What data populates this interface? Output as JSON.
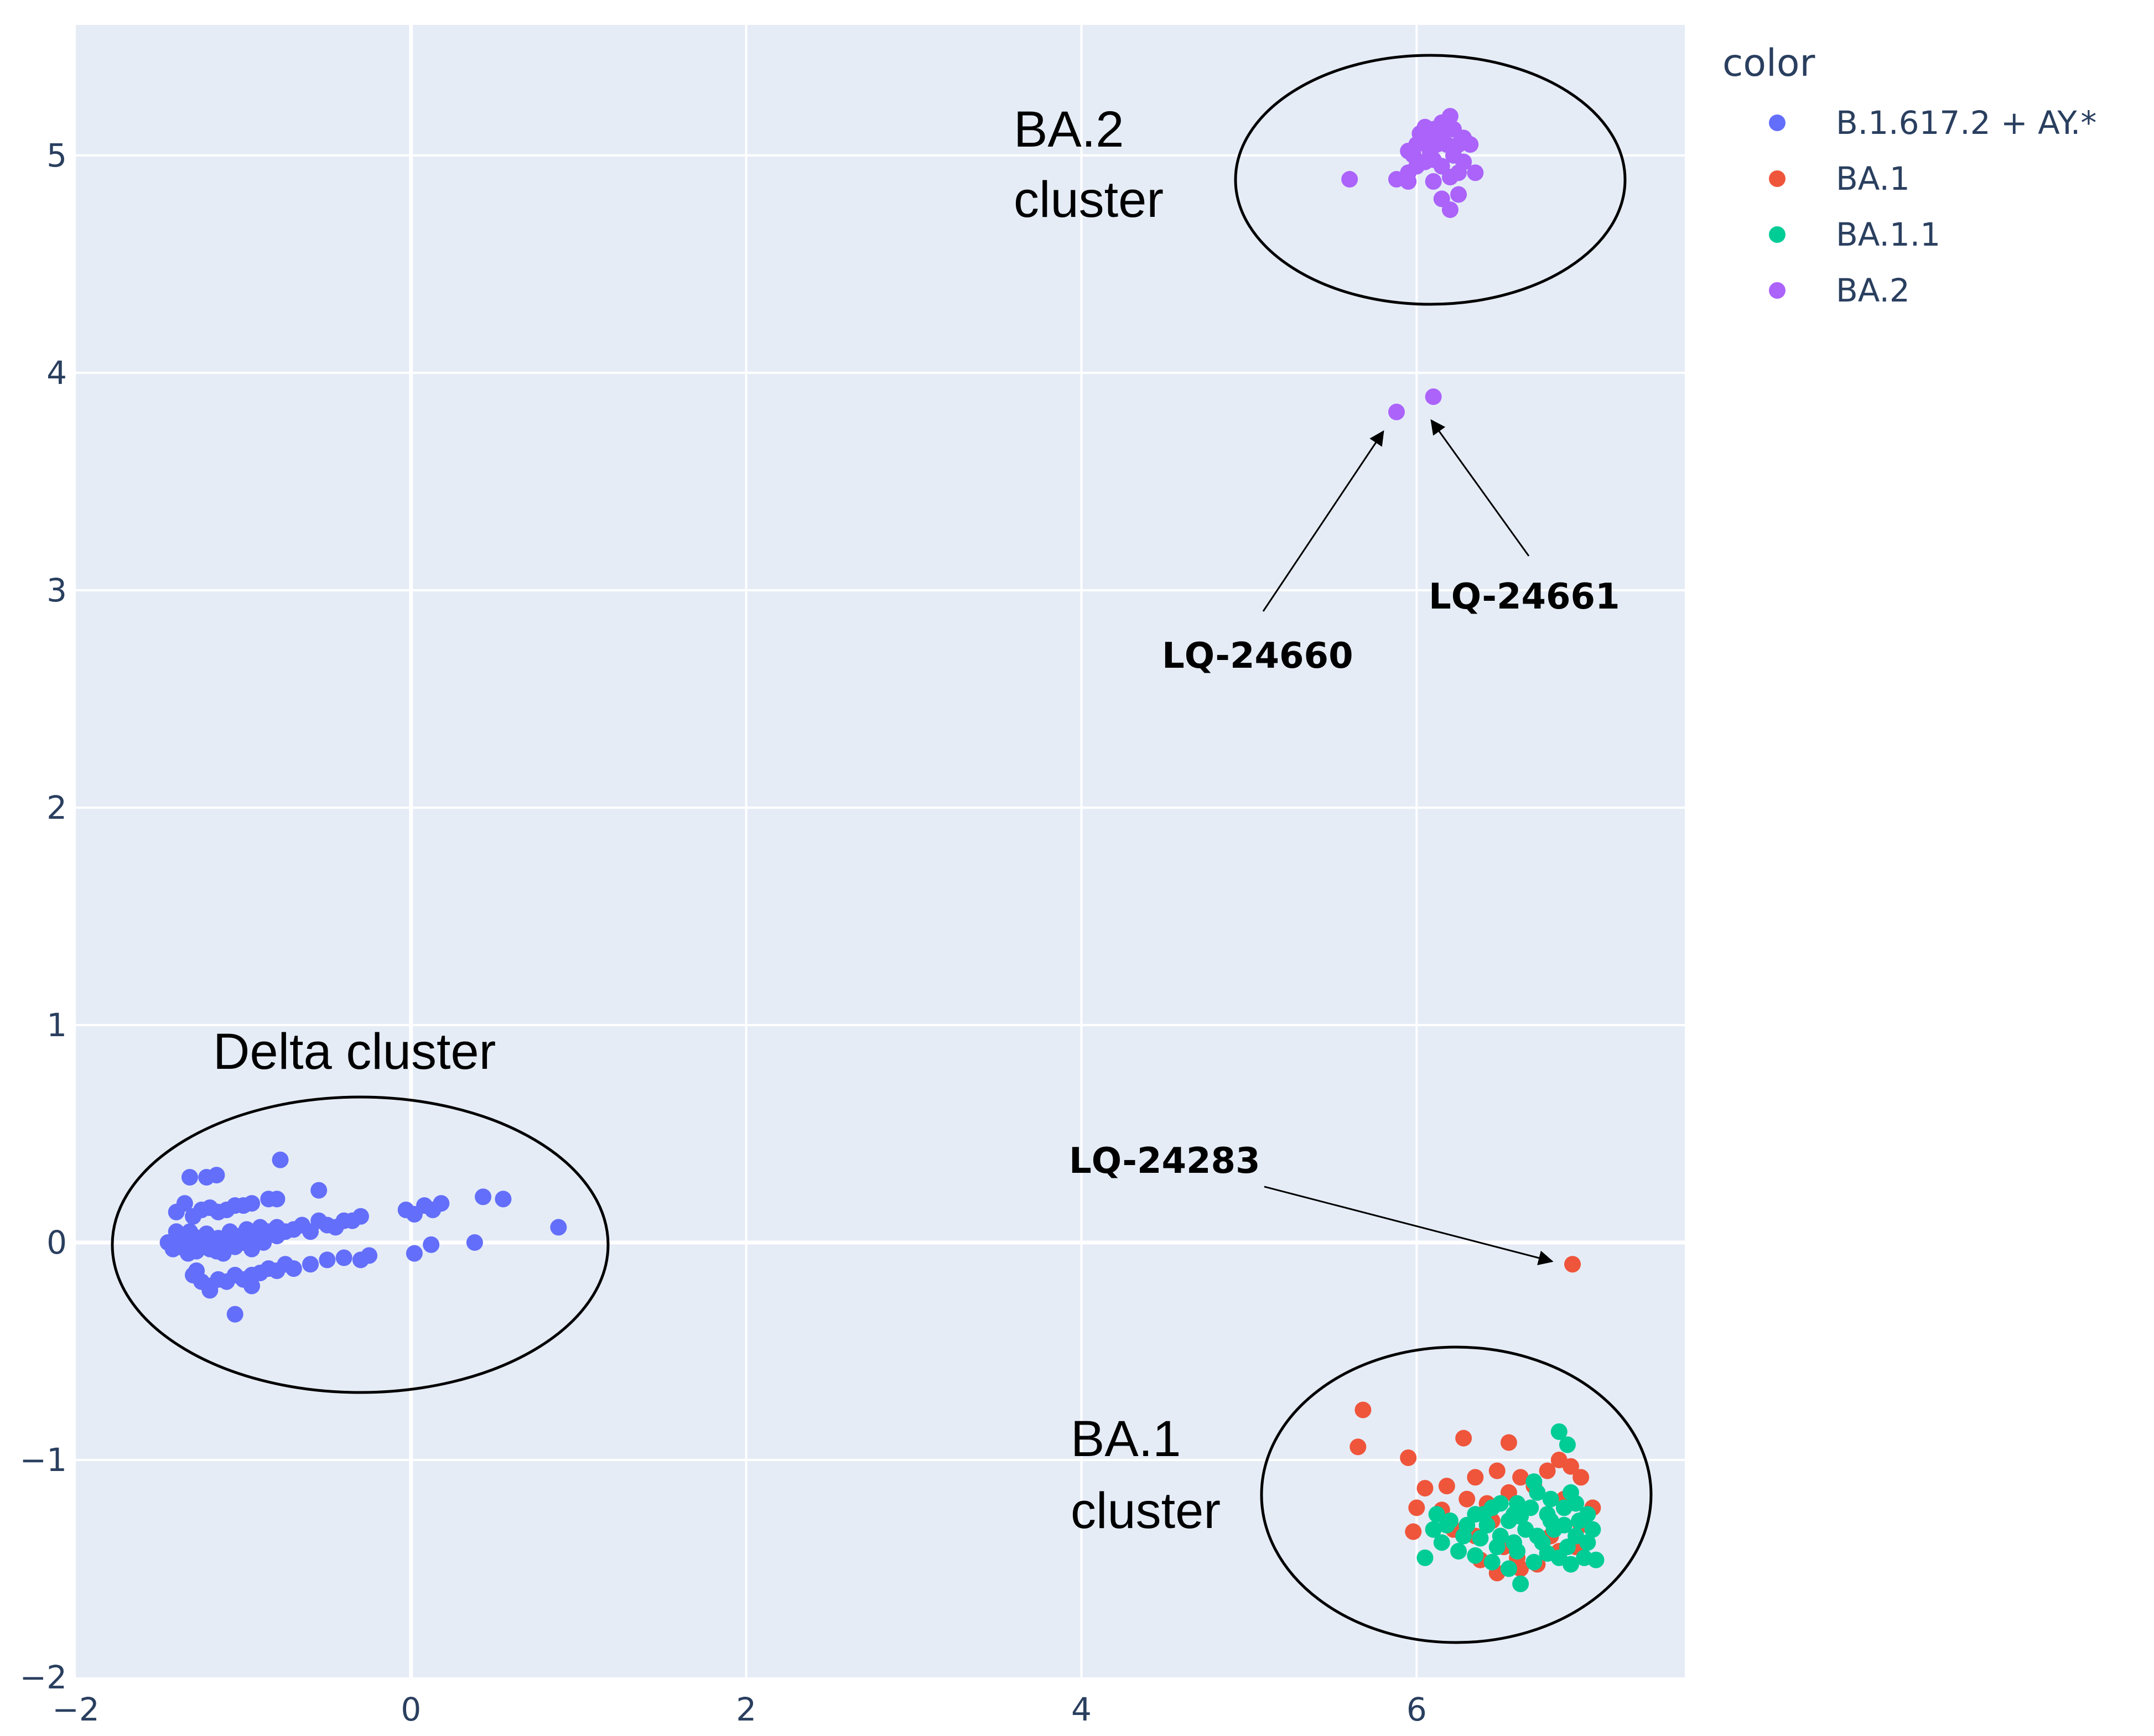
{
  "chart_data": {
    "type": "scatter",
    "xlim": [
      -2,
      7.6
    ],
    "ylim": [
      -2,
      5.6
    ],
    "xticks": [
      -2,
      0,
      2,
      4,
      6
    ],
    "yticks": [
      -2,
      -1,
      0,
      1,
      2,
      3,
      4,
      5
    ],
    "xtick_labels": [
      "−2",
      "0",
      "2",
      "4",
      "6"
    ],
    "ytick_labels": [
      "−2",
      "−1",
      "0",
      "1",
      "2",
      "3",
      "4",
      "5"
    ],
    "grid": true,
    "legend_position": "right",
    "legend_title": "color",
    "colors": {
      "background": "#e5ecf6",
      "grid": "#ffffff"
    },
    "series": [
      {
        "name": "B.1.617.2 + AY.*",
        "color": "#636efa",
        "points": [
          [
            -1.45,
            0.0
          ],
          [
            -1.4,
            0.05
          ],
          [
            -1.38,
            -0.02
          ],
          [
            -1.35,
            0.0
          ],
          [
            -1.33,
            -0.05
          ],
          [
            -1.3,
            0.03
          ],
          [
            -1.28,
            -0.04
          ],
          [
            -1.25,
            0.0
          ],
          [
            -1.22,
            0.04
          ],
          [
            -1.2,
            -0.03
          ],
          [
            -1.18,
            0.0
          ],
          [
            -1.15,
            0.02
          ],
          [
            -1.12,
            -0.05
          ],
          [
            -1.1,
            0.0
          ],
          [
            -1.08,
            0.05
          ],
          [
            -1.05,
            -0.02
          ],
          [
            -1.02,
            0.03
          ],
          [
            -1.0,
            0.0
          ],
          [
            -0.98,
            0.06
          ],
          [
            -0.95,
            -0.03
          ],
          [
            -0.92,
            0.02
          ],
          [
            -0.9,
            0.07
          ],
          [
            -0.88,
            0.0
          ],
          [
            -0.85,
            0.05
          ],
          [
            -0.82,
            0.04
          ],
          [
            -0.8,
            0.07
          ],
          [
            -0.75,
            0.05
          ],
          [
            -0.7,
            0.06
          ],
          [
            -0.65,
            0.08
          ],
          [
            -0.6,
            0.05
          ],
          [
            -0.55,
            0.1
          ],
          [
            -0.5,
            0.08
          ],
          [
            -0.45,
            0.07
          ],
          [
            -0.4,
            0.1
          ],
          [
            -0.35,
            0.1
          ],
          [
            -0.3,
            0.12
          ],
          [
            -1.42,
            -0.03
          ],
          [
            -1.4,
            0.02
          ],
          [
            -1.36,
            0.03
          ],
          [
            -1.32,
            0.05
          ],
          [
            -1.27,
            0.02
          ],
          [
            -1.24,
            -0.02
          ],
          [
            -1.16,
            -0.04
          ],
          [
            -1.06,
            0.03
          ],
          [
            -1.4,
            0.14
          ],
          [
            -1.35,
            0.18
          ],
          [
            -1.3,
            0.12
          ],
          [
            -1.25,
            0.15
          ],
          [
            -1.2,
            0.16
          ],
          [
            -1.15,
            0.14
          ],
          [
            -1.1,
            0.15
          ],
          [
            -1.05,
            0.17
          ],
          [
            -1.0,
            0.17
          ],
          [
            -0.95,
            0.18
          ],
          [
            -0.85,
            0.2
          ],
          [
            -0.8,
            0.2
          ],
          [
            -1.32,
            0.3
          ],
          [
            -1.22,
            0.3
          ],
          [
            -1.16,
            0.31
          ],
          [
            -0.78,
            0.38
          ],
          [
            -0.55,
            0.24
          ],
          [
            -0.8,
            0.03
          ],
          [
            -1.3,
            -0.15
          ],
          [
            -1.25,
            -0.18
          ],
          [
            -1.2,
            -0.2
          ],
          [
            -1.15,
            -0.17
          ],
          [
            -1.1,
            -0.18
          ],
          [
            -1.05,
            -0.15
          ],
          [
            -1.0,
            -0.17
          ],
          [
            -0.95,
            -0.15
          ],
          [
            -0.9,
            -0.14
          ],
          [
            -0.85,
            -0.12
          ],
          [
            -0.8,
            -0.13
          ],
          [
            -0.75,
            -0.1
          ],
          [
            -0.6,
            -0.1
          ],
          [
            -0.5,
            -0.08
          ],
          [
            -0.4,
            -0.07
          ],
          [
            -0.3,
            -0.08
          ],
          [
            -0.25,
            -0.06
          ],
          [
            -1.05,
            -0.33
          ],
          [
            -1.2,
            -0.22
          ],
          [
            -0.7,
            -0.12
          ],
          [
            -1.28,
            -0.13
          ],
          [
            -0.95,
            -0.2
          ],
          [
            -0.03,
            0.15
          ],
          [
            0.02,
            0.13
          ],
          [
            0.08,
            0.17
          ],
          [
            0.13,
            0.15
          ],
          [
            0.18,
            0.18
          ],
          [
            0.43,
            0.21
          ],
          [
            0.55,
            0.2
          ],
          [
            0.88,
            0.07
          ],
          [
            0.38,
            0.0
          ],
          [
            0.12,
            -0.01
          ],
          [
            0.02,
            -0.05
          ]
        ]
      },
      {
        "name": "BA.1",
        "color": "#ef553b",
        "points": [
          [
            6.93,
            -0.1
          ],
          [
            5.68,
            -0.77
          ],
          [
            5.65,
            -0.94
          ],
          [
            5.95,
            -0.99
          ],
          [
            6.05,
            -1.13
          ],
          [
            6.18,
            -1.12
          ],
          [
            6.0,
            -1.22
          ],
          [
            6.15,
            -1.23
          ],
          [
            6.3,
            -1.18
          ],
          [
            6.42,
            -1.2
          ],
          [
            6.55,
            -1.15
          ],
          [
            6.7,
            -1.12
          ],
          [
            6.28,
            -0.9
          ],
          [
            6.55,
            -0.92
          ],
          [
            6.35,
            -1.08
          ],
          [
            6.48,
            -1.05
          ],
          [
            6.62,
            -1.08
          ],
          [
            6.78,
            -1.05
          ],
          [
            6.85,
            -1.0
          ],
          [
            6.92,
            -1.03
          ],
          [
            6.98,
            -1.08
          ],
          [
            6.88,
            -1.18
          ],
          [
            7.05,
            -1.22
          ],
          [
            6.98,
            -1.3
          ],
          [
            5.98,
            -1.33
          ],
          [
            6.22,
            -1.32
          ],
          [
            6.35,
            -1.35
          ],
          [
            6.45,
            -1.28
          ],
          [
            6.52,
            -1.4
          ],
          [
            6.6,
            -1.45
          ],
          [
            6.72,
            -1.48
          ],
          [
            6.85,
            -1.42
          ],
          [
            6.95,
            -1.4
          ],
          [
            6.48,
            -1.52
          ],
          [
            6.62,
            -1.5
          ],
          [
            6.38,
            -1.46
          ],
          [
            6.8,
            -1.35
          ]
        ]
      },
      {
        "name": "BA.1.1",
        "color": "#00cc96",
        "points": [
          [
            6.85,
            -0.87
          ],
          [
            6.9,
            -0.93
          ],
          [
            6.7,
            -1.1
          ],
          [
            6.8,
            -1.18
          ],
          [
            6.6,
            -1.2
          ],
          [
            6.5,
            -1.2
          ],
          [
            6.4,
            -1.25
          ],
          [
            6.3,
            -1.3
          ],
          [
            6.2,
            -1.28
          ],
          [
            6.1,
            -1.32
          ],
          [
            6.05,
            -1.45
          ],
          [
            6.15,
            -1.38
          ],
          [
            6.25,
            -1.42
          ],
          [
            6.35,
            -1.44
          ],
          [
            6.45,
            -1.47
          ],
          [
            6.55,
            -1.5
          ],
          [
            6.62,
            -1.57
          ],
          [
            6.7,
            -1.47
          ],
          [
            6.78,
            -1.43
          ],
          [
            6.85,
            -1.45
          ],
          [
            6.92,
            -1.48
          ],
          [
            7.0,
            -1.45
          ],
          [
            7.07,
            -1.46
          ],
          [
            7.02,
            -1.38
          ],
          [
            6.95,
            -1.35
          ],
          [
            6.88,
            -1.3
          ],
          [
            6.8,
            -1.28
          ],
          [
            6.72,
            -1.35
          ],
          [
            6.65,
            -1.32
          ],
          [
            6.58,
            -1.38
          ],
          [
            6.5,
            -1.35
          ],
          [
            6.42,
            -1.3
          ],
          [
            6.35,
            -1.25
          ],
          [
            6.55,
            -1.28
          ],
          [
            6.68,
            -1.22
          ],
          [
            6.78,
            -1.25
          ],
          [
            6.88,
            -1.22
          ],
          [
            6.95,
            -1.2
          ],
          [
            7.02,
            -1.25
          ],
          [
            7.05,
            -1.32
          ],
          [
            6.9,
            -1.4
          ],
          [
            6.75,
            -1.38
          ],
          [
            6.6,
            -1.42
          ],
          [
            6.48,
            -1.4
          ],
          [
            6.38,
            -1.36
          ],
          [
            6.28,
            -1.35
          ],
          [
            6.18,
            -1.3
          ],
          [
            6.12,
            -1.25
          ],
          [
            6.45,
            -1.22
          ],
          [
            6.62,
            -1.26
          ],
          [
            6.82,
            -1.32
          ],
          [
            6.97,
            -1.28
          ],
          [
            6.72,
            -1.15
          ],
          [
            6.92,
            -1.15
          ],
          [
            6.58,
            -1.25
          ]
        ]
      },
      {
        "name": "BA.2",
        "color": "#ab63fa",
        "points": [
          [
            5.6,
            4.89
          ],
          [
            5.88,
            4.89
          ],
          [
            5.95,
            4.92
          ],
          [
            5.95,
            5.02
          ],
          [
            6.0,
            5.05
          ],
          [
            6.05,
            5.08
          ],
          [
            6.1,
            5.12
          ],
          [
            6.15,
            5.1
          ],
          [
            6.2,
            5.18
          ],
          [
            6.12,
            5.05
          ],
          [
            6.18,
            5.05
          ],
          [
            6.22,
            5.0
          ],
          [
            6.25,
            5.05
          ],
          [
            6.28,
            5.08
          ],
          [
            6.1,
            4.98
          ],
          [
            6.15,
            4.95
          ],
          [
            6.05,
            4.97
          ],
          [
            5.98,
            5.0
          ],
          [
            6.02,
            5.1
          ],
          [
            6.08,
            5.02
          ],
          [
            6.2,
            4.9
          ],
          [
            6.25,
            4.92
          ],
          [
            6.35,
            4.92
          ],
          [
            6.28,
            4.97
          ],
          [
            6.1,
            4.88
          ],
          [
            6.15,
            4.8
          ],
          [
            6.2,
            4.75
          ],
          [
            6.25,
            4.82
          ],
          [
            6.22,
            5.12
          ],
          [
            6.15,
            5.15
          ],
          [
            6.05,
            5.13
          ],
          [
            6.0,
            4.95
          ],
          [
            5.95,
            4.88
          ],
          [
            6.32,
            5.05
          ],
          [
            5.88,
            3.82
          ],
          [
            6.1,
            3.89
          ]
        ]
      }
    ],
    "annotations": {
      "ba2_cluster": [
        "BA.2",
        "cluster"
      ],
      "delta_cluster": "Delta cluster",
      "ba1_cluster": [
        "BA.1",
        "cluster"
      ],
      "lq_24660": "LQ-24660",
      "lq_24661": "LQ-24661",
      "lq_24283": "LQ-24283"
    }
  }
}
